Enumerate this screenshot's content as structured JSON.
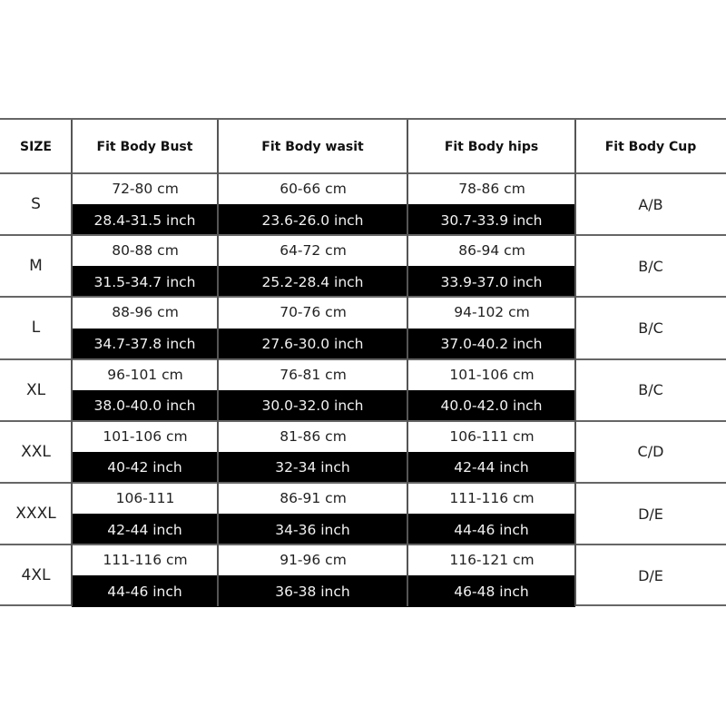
{
  "headers": [
    "SIZE",
    "Fit Body Bust",
    "Fit Body wasit",
    "Fit Body hips",
    "Fit Body Cup"
  ],
  "rows": [
    {
      "size": "S",
      "bust_cm": "72-80 cm",
      "bust_inch": "28.4-31.5 inch",
      "waist_cm": "60-66 cm",
      "waist_inch": "23.6-26.0 inch",
      "hips_cm": "78-86 cm",
      "hips_inch": "30.7-33.9 inch",
      "cup": "A/B"
    },
    {
      "size": "M",
      "bust_cm": "80-88 cm",
      "bust_inch": "31.5-34.7 inch",
      "waist_cm": "64-72 cm",
      "waist_inch": "25.2-28.4 inch",
      "hips_cm": "86-94 cm",
      "hips_inch": "33.9-37.0 inch",
      "cup": "B/C"
    },
    {
      "size": "L",
      "bust_cm": "88-96 cm",
      "bust_inch": "34.7-37.8 inch",
      "waist_cm": "70-76 cm",
      "waist_inch": "27.6-30.0 inch",
      "hips_cm": "94-102 cm",
      "hips_inch": "37.0-40.2 inch",
      "cup": "B/C"
    },
    {
      "size": "XL",
      "bust_cm": "96-101 cm",
      "bust_inch": "38.0-40.0 inch",
      "waist_cm": "76-81 cm",
      "waist_inch": "30.0-32.0 inch",
      "hips_cm": "101-106 cm",
      "hips_inch": "40.0-42.0 inch",
      "cup": "B/C"
    },
    {
      "size": "XXL",
      "bust_cm": "101-106 cm",
      "bust_inch": "40-42 inch",
      "waist_cm": "81-86 cm",
      "waist_inch": "32-34 inch",
      "hips_cm": "106-111 cm",
      "hips_inch": "42-44 inch",
      "cup": "C/D"
    },
    {
      "size": "XXXL",
      "bust_cm": "106-111",
      "bust_inch": "42-44 inch",
      "waist_cm": "86-91 cm",
      "waist_inch": "34-36 inch",
      "hips_cm": "111-116 cm",
      "hips_inch": "44-46 inch",
      "cup": "D/E"
    },
    {
      "size": "4XL",
      "bust_cm": "111-116 cm",
      "bust_inch": "44-46 inch",
      "waist_cm": "91-96 cm",
      "waist_inch": "36-38 inch",
      "hips_cm": "116-121 cm",
      "hips_inch": "46-48 inch",
      "cup": "D/E"
    }
  ]
}
